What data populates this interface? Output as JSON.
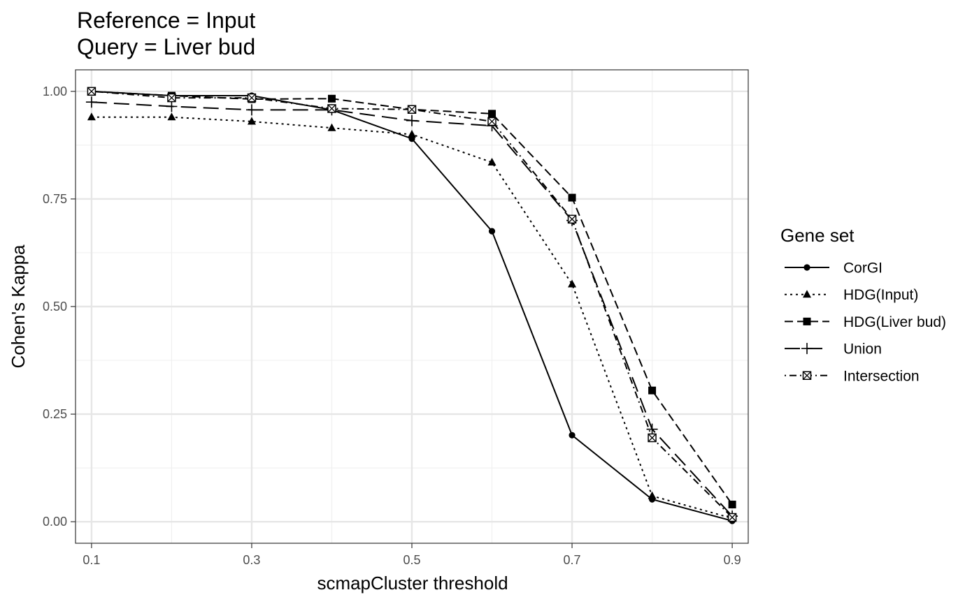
{
  "chart_data": {
    "type": "line",
    "title": [
      "Reference = Input",
      "Query = Liver bud"
    ],
    "xlabel": "scmapCluster threshold",
    "ylabel": "Cohen's Kappa",
    "xlim": [
      0.08,
      0.92
    ],
    "ylim": [
      -0.05,
      1.05
    ],
    "xticks": [
      0.1,
      0.3,
      0.5,
      0.7,
      0.9
    ],
    "xtick_labels": [
      "0.1",
      "0.3",
      "0.5",
      "0.7",
      "0.9"
    ],
    "xminor": [
      0.2,
      0.4,
      0.6,
      0.8
    ],
    "yticks": [
      0,
      0.25,
      0.5,
      0.75,
      1.0
    ],
    "ytick_labels": [
      "0.00",
      "0.25",
      "0.50",
      "0.75",
      "1.00"
    ],
    "yminor": [
      0.125,
      0.375,
      0.625,
      0.875
    ],
    "grid": true,
    "legend_title": "Gene set",
    "legend_position": "right",
    "x": [
      0.1,
      0.2,
      0.3,
      0.4,
      0.5,
      0.6,
      0.7,
      0.8,
      0.9
    ],
    "series": [
      {
        "name": "CorGI",
        "linetype": "solid",
        "marker": "circle",
        "values": [
          1.0,
          0.99,
          0.99,
          0.957,
          0.89,
          0.675,
          0.201,
          0.052,
          0.002
        ]
      },
      {
        "name": "HDG(Input)",
        "linetype": "dotted",
        "marker": "triangle",
        "values": [
          0.94,
          0.94,
          0.93,
          0.915,
          0.9,
          0.835,
          0.552,
          0.06,
          0.008
        ]
      },
      {
        "name": "HDG(Liver bud)",
        "linetype": "dashed",
        "marker": "square",
        "values": [
          1.0,
          0.99,
          0.982,
          0.983,
          0.958,
          0.948,
          0.753,
          0.305,
          0.04
        ]
      },
      {
        "name": "Union",
        "linetype": "longdash",
        "marker": "plus",
        "values": [
          0.975,
          0.965,
          0.957,
          0.957,
          0.932,
          0.92,
          0.7,
          0.215,
          0.013
        ]
      },
      {
        "name": "Intersection",
        "linetype": "dotdash",
        "marker": "boxcross",
        "values": [
          1.0,
          0.985,
          0.985,
          0.96,
          0.958,
          0.93,
          0.703,
          0.195,
          0.01
        ]
      }
    ]
  }
}
